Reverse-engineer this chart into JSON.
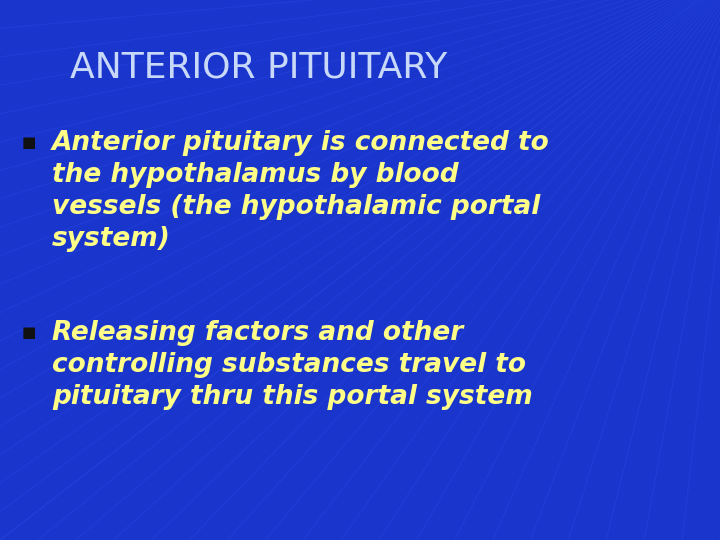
{
  "title": "ANTERIOR PITUITARY",
  "title_color": "#c8d8f8",
  "title_fontsize": 26,
  "background_color": "#1a35cc",
  "bullet_color": "#ffff88",
  "bullet_marker_color": "#111111",
  "bullet1_lines": [
    "Anterior pituitary is connected to",
    "the hypothalamus by blood",
    "vessels (the hypothalamic portal",
    "system)"
  ],
  "bullet2_lines": [
    "Releasing factors and other",
    "controlling substances travel to",
    "pituitary thru this portal system"
  ],
  "grid_line_color": "#2244dd",
  "grid_line_alpha": 0.7
}
